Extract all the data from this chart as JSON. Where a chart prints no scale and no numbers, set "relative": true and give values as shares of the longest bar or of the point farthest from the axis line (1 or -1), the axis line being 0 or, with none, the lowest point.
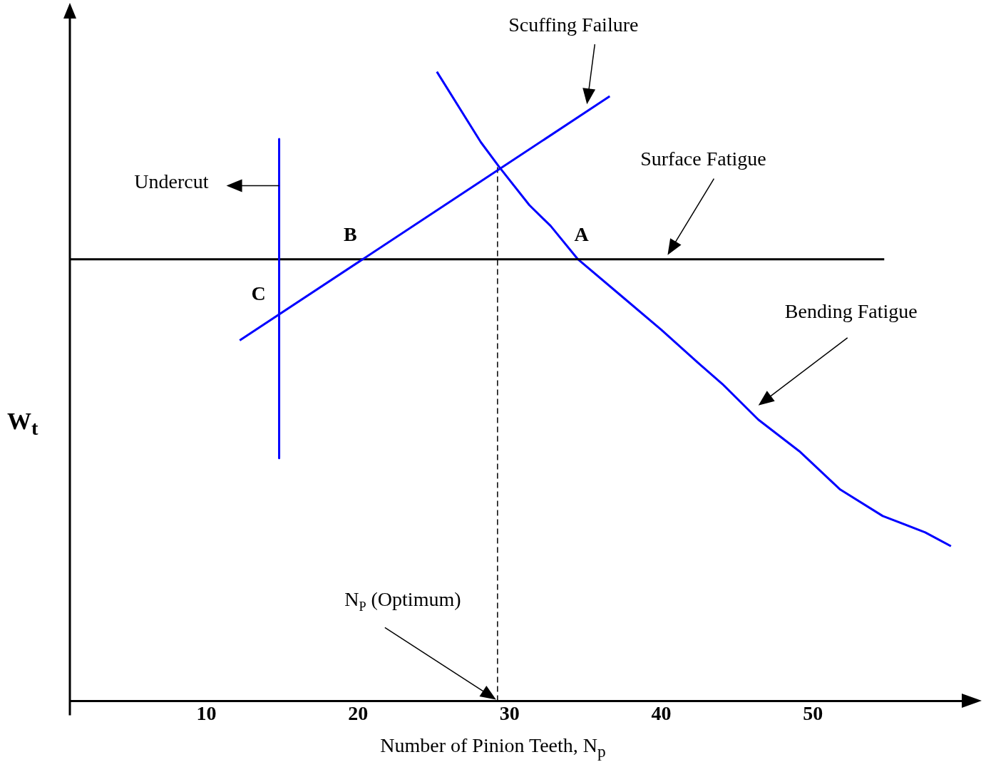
{
  "chart_data": {
    "type": "line",
    "xlabel": "Number of Pinion Teeth, N$_{p}$",
    "ylabel": "W$_{t}$",
    "relative": true,
    "xlim": [
      1,
      60
    ],
    "xticks": [
      10,
      20,
      30,
      40,
      50
    ],
    "tick_labels": "x",
    "legend": false,
    "grid": false,
    "marker": "none",
    "series": [
      {
        "color": "#0000ff",
        "x": [
          14.8,
          14.8
        ],
        "values": [
          0.893,
          0.386
        ]
      },
      {
        "color": "#0000ff",
        "x": [
          12.2,
          36.6
        ],
        "values": [
          0.573,
          0.961
        ]
      },
      {
        "color": "#000000",
        "x": [
          1,
          54.7
        ],
        "values": [
          0.702,
          0.702
        ]
      },
      {
        "color": "#0000ff",
        "x": [
          25.2,
          28.1,
          29.3,
          31.3,
          32.7,
          34.5,
          37.3,
          40.0,
          42.3,
          44.1,
          46.4,
          49.1,
          51.8,
          54.6,
          57.4,
          59.1
        ],
        "values": [
          1.0,
          0.888,
          0.849,
          0.788,
          0.755,
          0.702,
          0.645,
          0.59,
          0.54,
          0.502,
          0.447,
          0.397,
          0.336,
          0.294,
          0.268,
          0.246
        ]
      },
      {
        "color": "#000000",
        "line_style": "dashed",
        "x": [
          29.2,
          29.2
        ],
        "values": [
          0,
          0.849
        ]
      }
    ],
    "annotations": [
      "Undercut",
      "Scuffing Failure",
      "Surface Fatigue",
      "Bending Fatigue",
      {
        "text": "A",
        "x": 34.5,
        "y": 0.702
      },
      {
        "text": "B",
        "x": 20.2,
        "y": 0.702
      },
      {
        "text": "C",
        "x": 14.8,
        "y": 0.615
      },
      "N$_{P}$ (Optimum)"
    ]
  }
}
